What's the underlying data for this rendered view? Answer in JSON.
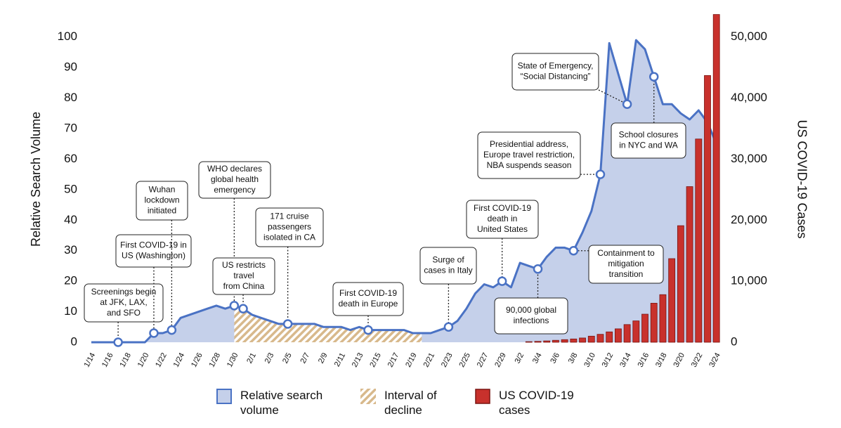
{
  "chart_data": {
    "type": "area-bar",
    "y_label": "Relative Search Volume",
    "y2_label": "US COVID-19 Cases",
    "categories": [
      "1/14",
      null,
      "1/16",
      null,
      "1/18",
      null,
      "1/20",
      null,
      "1/22",
      null,
      "1/24",
      null,
      "1/26",
      null,
      "1/28",
      null,
      "1/30",
      null,
      "2/1",
      null,
      "2/3",
      null,
      "2/5",
      null,
      "2/7",
      null,
      "2/9",
      null,
      "2/11",
      null,
      "2/13",
      null,
      "2/15",
      null,
      "2/17",
      null,
      "2/19",
      null,
      "2/21",
      null,
      "2/23",
      null,
      "2/25",
      null,
      "2/27",
      null,
      "2/29",
      null,
      "3/2",
      null,
      "3/4",
      null,
      "3/6",
      null,
      "3/8",
      null,
      "3/10",
      null,
      "3/12",
      null,
      "3/14",
      null,
      "3/16",
      null,
      "3/18",
      null,
      "3/20",
      null,
      "3/22",
      null,
      "3/24"
    ],
    "ylim": [
      0,
      108
    ],
    "yticks": [
      0,
      10,
      20,
      30,
      40,
      50,
      60,
      70,
      80,
      90,
      100
    ],
    "y2lim": [
      0,
      54000
    ],
    "y2ticks": [
      0,
      {
        "value": 10000,
        "label": "10,000"
      },
      {
        "value": 20000,
        "label": "20,000"
      },
      {
        "value": 30000,
        "label": "30,000"
      },
      {
        "value": 40000,
        "label": "40,000"
      },
      {
        "value": 50000,
        "label": "50,000"
      }
    ],
    "series": [
      {
        "name": "Relative search volume",
        "kind": "area",
        "color": "#4a72c4",
        "fill": "#c5d0ea",
        "values": [
          0,
          0,
          0,
          0,
          0,
          0,
          0,
          3,
          3,
          4,
          8,
          9,
          10,
          11,
          12,
          11,
          12,
          11,
          9,
          8,
          7,
          6,
          6,
          6,
          6,
          6,
          5,
          5,
          5,
          4,
          5,
          4,
          4,
          4,
          4,
          4,
          3,
          3,
          3,
          4,
          5,
          7,
          11,
          16,
          19,
          18,
          20,
          18,
          26,
          25,
          24,
          28,
          31,
          31,
          30,
          36,
          43,
          55,
          98,
          88,
          78,
          99,
          96,
          87,
          78,
          78,
          75,
          73,
          76,
          72,
          65
        ]
      },
      {
        "name": "Interval of decline",
        "kind": "hatch",
        "color": "#d8b98c",
        "values": [
          null,
          null,
          null,
          null,
          null,
          null,
          null,
          null,
          null,
          null,
          null,
          null,
          null,
          null,
          null,
          null,
          12,
          11,
          9,
          8,
          7,
          6,
          6,
          6,
          6,
          6,
          5,
          5,
          5,
          4,
          5,
          4,
          4,
          4,
          4,
          4,
          3,
          3,
          null,
          null,
          null,
          null,
          null,
          null,
          null,
          null,
          null,
          null,
          null,
          null,
          null,
          null,
          null,
          null,
          null,
          null,
          null,
          null,
          null,
          null,
          null,
          null,
          null,
          null,
          null,
          null,
          null,
          null,
          null,
          null,
          null
        ]
      },
      {
        "name": "US COVID-19 cases",
        "kind": "bar",
        "axis": "y2",
        "color": "#c8312c",
        "values": [
          null,
          null,
          null,
          null,
          null,
          null,
          null,
          null,
          null,
          null,
          null,
          null,
          null,
          null,
          null,
          null,
          null,
          null,
          null,
          null,
          null,
          null,
          null,
          null,
          null,
          null,
          null,
          null,
          null,
          null,
          null,
          null,
          null,
          null,
          null,
          null,
          null,
          null,
          null,
          null,
          null,
          null,
          null,
          null,
          null,
          null,
          null,
          null,
          null,
          100,
          150,
          220,
          320,
          430,
          540,
          700,
          1000,
          1300,
          1700,
          2200,
          2900,
          3500,
          4600,
          6400,
          7800,
          13700,
          19100,
          25500,
          33300,
          43700,
          53700
        ]
      }
    ],
    "annotations": [
      {
        "lines": [
          "Screenings begin",
          "at JFK, LAX,",
          "and SFO"
        ]
      },
      {
        "lines": [
          "First COVID-19 in",
          "US (Washington)"
        ]
      },
      {
        "lines": [
          "Wuhan",
          "lockdown",
          "initiated"
        ]
      },
      {
        "lines": [
          "WHO declares",
          "global health",
          "emergency"
        ]
      },
      {
        "lines": [
          "US restricts",
          "travel",
          "from China"
        ]
      },
      {
        "lines": [
          "171 cruise",
          "passengers",
          "isolated in CA"
        ]
      },
      {
        "lines": [
          "First COVID-19",
          "death in Europe"
        ]
      },
      {
        "lines": [
          "Surge of",
          "cases in Italy"
        ]
      },
      {
        "lines": [
          "First COVID-19",
          "death in",
          "United States"
        ]
      },
      {
        "lines": [
          "90,000 global",
          "infections"
        ]
      },
      {
        "lines": [
          "Containment to",
          "mitigation",
          "transition"
        ]
      },
      {
        "lines": [
          "Presidential address,",
          "Europe travel restriction,",
          "NBA suspends season"
        ]
      },
      {
        "lines": [
          "State of Emergency,",
          "“Social Distancing”"
        ]
      },
      {
        "lines": [
          "School closures",
          "in NYC and WA"
        ]
      }
    ]
  }
}
